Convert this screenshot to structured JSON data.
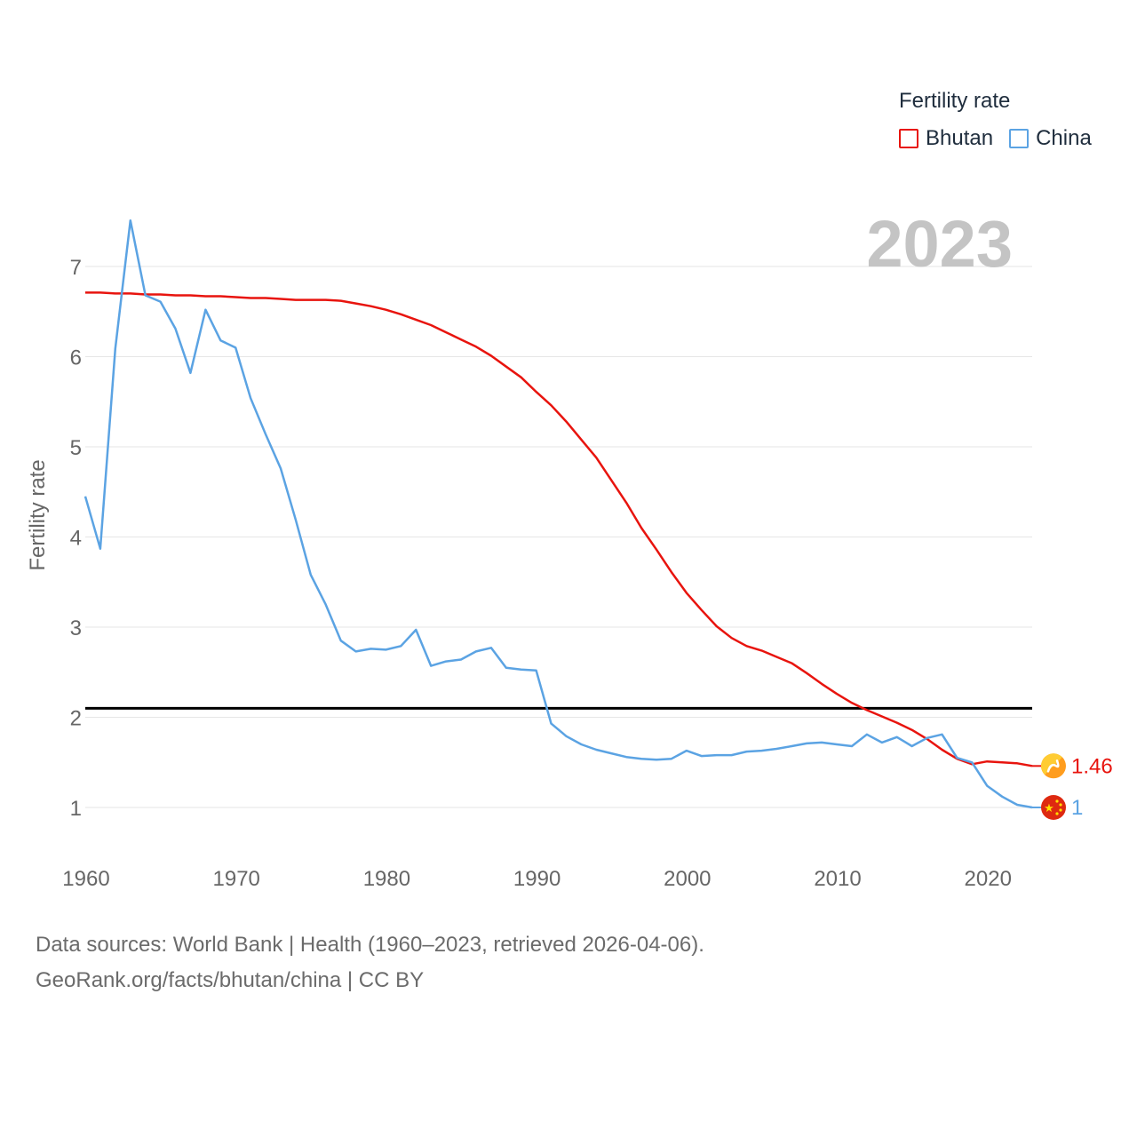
{
  "legend": {
    "title": "Fertility rate",
    "items": [
      {
        "label": "Bhutan",
        "color": "#e8140e"
      },
      {
        "label": "China",
        "color": "#5ba3e3"
      }
    ]
  },
  "footer": {
    "line1": "Data sources: World Bank | Health (1960–2023, retrieved 2026-04-06).",
    "line2": "GeoRank.org/facts/bhutan/china | CC BY"
  },
  "chart_data": {
    "type": "line",
    "year_label": "2023",
    "ylabel": "Fertility rate",
    "xlabel": "",
    "xlim": [
      1960,
      2023
    ],
    "ylim": [
      0.5,
      7.5
    ],
    "yticks": [
      1,
      2,
      3,
      4,
      5,
      6,
      7
    ],
    "xticks": [
      1960,
      1970,
      1980,
      1990,
      2000,
      2010,
      2020
    ],
    "grid": true,
    "reference_line": {
      "value": 2.1,
      "color": "#000000"
    },
    "x": [
      1960,
      1961,
      1962,
      1963,
      1964,
      1965,
      1966,
      1967,
      1968,
      1969,
      1970,
      1971,
      1972,
      1973,
      1974,
      1975,
      1976,
      1977,
      1978,
      1979,
      1980,
      1981,
      1982,
      1983,
      1984,
      1985,
      1986,
      1987,
      1988,
      1989,
      1990,
      1991,
      1992,
      1993,
      1994,
      1995,
      1996,
      1997,
      1998,
      1999,
      2000,
      2001,
      2002,
      2003,
      2004,
      2005,
      2006,
      2007,
      2008,
      2009,
      2010,
      2011,
      2012,
      2013,
      2014,
      2015,
      2016,
      2017,
      2018,
      2019,
      2020,
      2021,
      2022,
      2023
    ],
    "series": [
      {
        "name": "Bhutan",
        "color": "#e8140e",
        "end_label": "1.46",
        "values": [
          6.71,
          6.71,
          6.7,
          6.7,
          6.69,
          6.69,
          6.68,
          6.68,
          6.67,
          6.67,
          6.66,
          6.65,
          6.65,
          6.64,
          6.63,
          6.63,
          6.63,
          6.62,
          6.59,
          6.56,
          6.52,
          6.47,
          6.41,
          6.35,
          6.27,
          6.19,
          6.11,
          6.01,
          5.89,
          5.77,
          5.61,
          5.46,
          5.28,
          5.08,
          4.88,
          4.63,
          4.38,
          4.1,
          3.86,
          3.61,
          3.38,
          3.19,
          3.01,
          2.88,
          2.79,
          2.74,
          2.67,
          2.6,
          2.49,
          2.37,
          2.26,
          2.16,
          2.08,
          2.01,
          1.94,
          1.86,
          1.76,
          1.64,
          1.54,
          1.48,
          1.51,
          1.5,
          1.49,
          1.46
        ]
      },
      {
        "name": "China",
        "color": "#5ba3e3",
        "end_label": "1",
        "values": [
          4.45,
          3.87,
          6.09,
          7.51,
          6.68,
          6.61,
          6.31,
          5.82,
          6.52,
          6.18,
          6.1,
          5.54,
          5.14,
          4.76,
          4.19,
          3.58,
          3.25,
          2.85,
          2.73,
          2.76,
          2.75,
          2.79,
          2.97,
          2.57,
          2.62,
          2.64,
          2.73,
          2.77,
          2.55,
          2.53,
          2.52,
          1.93,
          1.79,
          1.7,
          1.64,
          1.6,
          1.56,
          1.54,
          1.53,
          1.54,
          1.63,
          1.57,
          1.58,
          1.58,
          1.62,
          1.63,
          1.65,
          1.68,
          1.71,
          1.72,
          1.7,
          1.68,
          1.81,
          1.72,
          1.78,
          1.68,
          1.77,
          1.81,
          1.55,
          1.5,
          1.24,
          1.12,
          1.03,
          1.0
        ]
      }
    ]
  }
}
